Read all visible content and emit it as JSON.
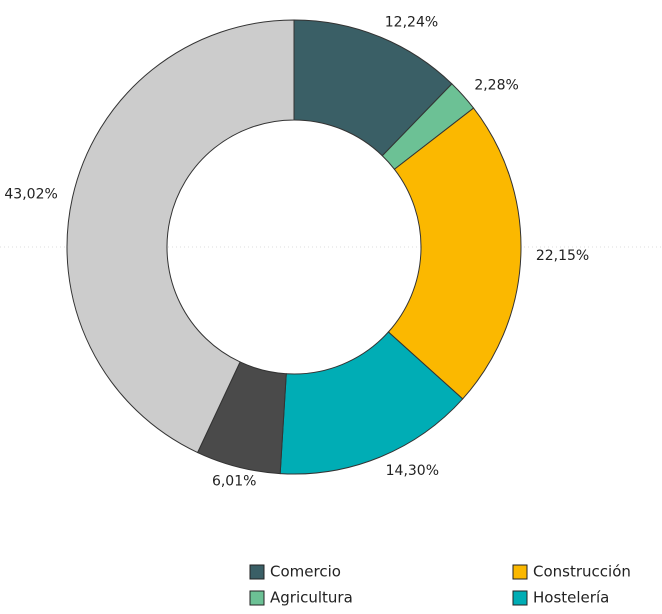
{
  "chart_data": {
    "type": "donut",
    "categories": [
      "Comercio",
      "Agricultura",
      "Construcción",
      "Hostelería",
      null,
      null
    ],
    "values": [
      12.24,
      2.28,
      22.15,
      14.3,
      6.01,
      43.02
    ],
    "value_labels": [
      "12,24%",
      "2,28%",
      "22,15%",
      "14,30%",
      "6,01%",
      "43,02%"
    ],
    "colors": [
      "#3a5f66",
      "#6cc195",
      "#fbb800",
      "#00adb5",
      "#4a4a4a",
      "#cccccc"
    ]
  }
}
